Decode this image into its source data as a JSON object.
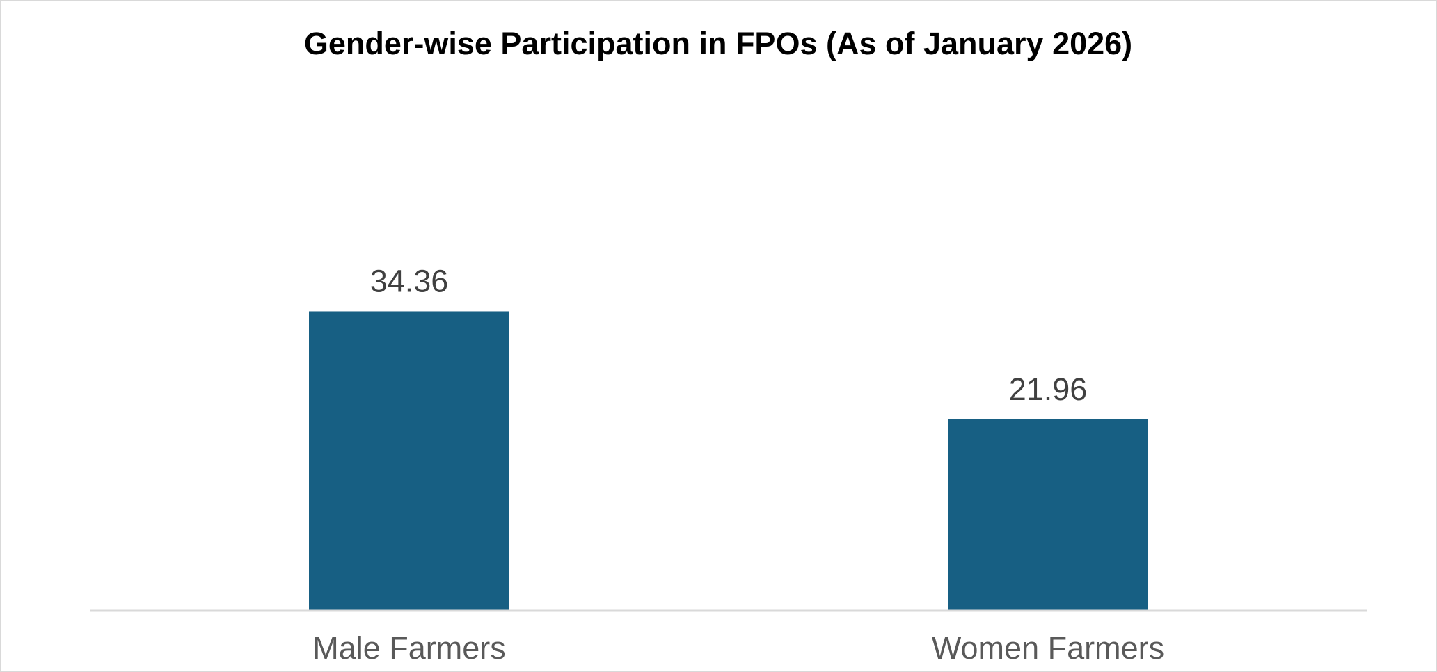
{
  "chart_data": {
    "type": "bar",
    "title": "Gender-wise Participation in FPOs (As of January 2026)",
    "categories": [
      "Male Farmers",
      "Women Farmers"
    ],
    "values": [
      34.36,
      21.96
    ],
    "data_labels": [
      "34.36",
      "21.96"
    ],
    "xlabel": "",
    "ylabel": "",
    "ylim": [
      0,
      40
    ],
    "grid": false,
    "legend": "none",
    "colors": {
      "bar": "#175f83",
      "axis": "#d9d9d9",
      "data_label": "#404040",
      "tick_label": "#595959",
      "title": "#000000"
    }
  }
}
